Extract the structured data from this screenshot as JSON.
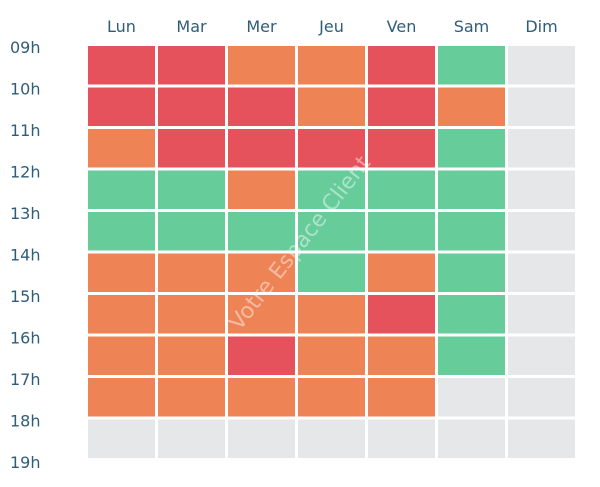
{
  "chart_data": {
    "type": "heatmap",
    "columns": [
      "Lun",
      "Mar",
      "Mer",
      "Jeu",
      "Ven",
      "Sam",
      "Dim"
    ],
    "rows": [
      "09h",
      "10h",
      "11h",
      "12h",
      "13h",
      "14h",
      "15h",
      "16h",
      "17h",
      "18h"
    ],
    "tick_labels": [
      "09h",
      "10h",
      "11h",
      "12h",
      "13h",
      "14h",
      "15h",
      "16h",
      "17h",
      "18h",
      "19h"
    ],
    "values": [
      [
        "red",
        "red",
        "orange",
        "orange",
        "red",
        "green",
        "none"
      ],
      [
        "red",
        "red",
        "red",
        "orange",
        "red",
        "orange",
        "none"
      ],
      [
        "orange",
        "red",
        "red",
        "red",
        "red",
        "green",
        "none"
      ],
      [
        "green",
        "green",
        "orange",
        "green",
        "green",
        "green",
        "none"
      ],
      [
        "green",
        "green",
        "green",
        "green",
        "green",
        "green",
        "none"
      ],
      [
        "orange",
        "orange",
        "orange",
        "green",
        "orange",
        "green",
        "none"
      ],
      [
        "orange",
        "orange",
        "orange",
        "orange",
        "red",
        "green",
        "none"
      ],
      [
        "orange",
        "orange",
        "red",
        "orange",
        "orange",
        "green",
        "none"
      ],
      [
        "orange",
        "orange",
        "orange",
        "orange",
        "orange",
        "none",
        "none"
      ],
      [
        "none",
        "none",
        "none",
        "none",
        "none",
        "none",
        "none"
      ]
    ],
    "colors": {
      "red": "#e5525b",
      "orange": "#ee8456",
      "green": "#66cc9a",
      "none": "#e5e7e8"
    },
    "label_color": "#2e5d79",
    "grid_color": "#ffffff",
    "watermark": "Votre Espace Client"
  }
}
